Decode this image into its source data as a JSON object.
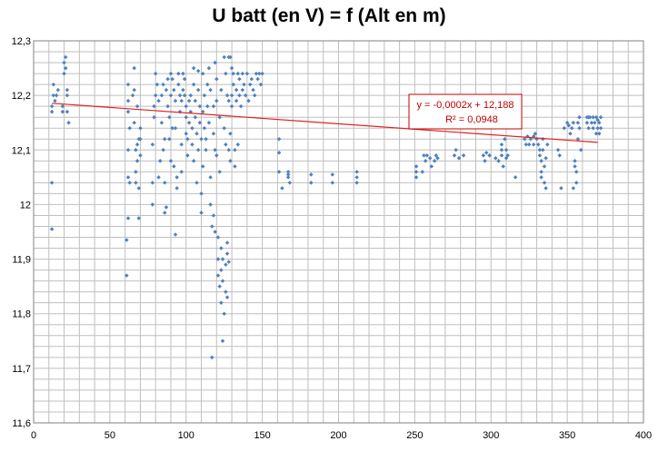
{
  "chart_data": {
    "type": "scatter",
    "title": "U batt (en V) = f (Alt en m)",
    "xlabel": "",
    "ylabel": "",
    "xlim": [
      0,
      400
    ],
    "ylim": [
      11.6,
      12.3
    ],
    "x_ticks": [
      "0",
      "50",
      "100",
      "150",
      "200",
      "250",
      "300",
      "350",
      "400"
    ],
    "y_ticks": [
      "11,6",
      "11,7",
      "11,8",
      "11,9",
      "12",
      "12,1",
      "12,2",
      "12,3"
    ],
    "grid": true,
    "marker_color": "#4f81bd",
    "trendline": {
      "type": "linear",
      "slope": -0.0002,
      "intercept": 12.188,
      "x_range": [
        12,
        370
      ],
      "color": "#e02020",
      "equation_label": "y = -0,0002x + 12,188",
      "r2_label": "R² = 0,0948"
    },
    "points": [
      [
        12,
        12.04
      ],
      [
        12,
        11.955
      ],
      [
        12,
        12.18
      ],
      [
        13,
        12.2
      ],
      [
        13,
        12.22
      ],
      [
        14,
        12.19
      ],
      [
        15,
        12.2
      ],
      [
        12,
        12.17
      ],
      [
        16,
        12.21
      ],
      [
        19,
        12.18
      ],
      [
        19,
        12.17
      ],
      [
        20,
        12.24
      ],
      [
        20,
        12.26
      ],
      [
        21,
        12.27
      ],
      [
        21,
        12.25
      ],
      [
        22,
        12.21
      ],
      [
        22,
        12.2
      ],
      [
        22,
        12.17
      ],
      [
        23,
        12.15
      ],
      [
        61,
        11.87
      ],
      [
        61,
        11.935
      ],
      [
        62,
        11.975
      ],
      [
        62,
        12.05
      ],
      [
        62,
        12.1
      ],
      [
        62,
        12.19
      ],
      [
        62,
        12.22
      ],
      [
        62,
        12.17
      ],
      [
        63,
        12.04
      ],
      [
        63,
        12.14
      ],
      [
        65,
        12.2
      ],
      [
        66,
        12.25
      ],
      [
        66,
        12.21
      ],
      [
        66,
        12.15
      ],
      [
        67,
        12.1
      ],
      [
        67,
        12.06
      ],
      [
        67,
        12.04
      ],
      [
        68,
        12.11
      ],
      [
        68,
        12.08
      ],
      [
        68,
        12.18
      ],
      [
        69,
        12.03
      ],
      [
        69,
        11.975
      ],
      [
        69,
        12.12
      ],
      [
        70,
        12.12
      ],
      [
        70,
        12.14
      ],
      [
        70,
        12.09
      ],
      [
        78,
        12.0
      ],
      [
        78,
        12.04
      ],
      [
        78,
        12.11
      ],
      [
        79,
        12.16
      ],
      [
        79,
        12.18
      ],
      [
        80,
        12.24
      ],
      [
        80,
        12.2
      ],
      [
        81,
        12.22
      ],
      [
        82,
        12.19
      ],
      [
        82,
        12.05
      ],
      [
        83,
        12.08
      ],
      [
        84,
        12.2
      ],
      [
        84,
        12.15
      ],
      [
        85,
        12.1
      ],
      [
        85,
        12.22
      ],
      [
        86,
        12.04
      ],
      [
        86,
        12.12
      ],
      [
        87,
        12.21
      ],
      [
        86,
        11.985
      ],
      [
        87,
        11.995
      ],
      [
        88,
        12.23
      ],
      [
        88,
        12.18
      ],
      [
        89,
        12.16
      ],
      [
        89,
        12.12
      ],
      [
        90,
        12.24
      ],
      [
        90,
        12.2
      ],
      [
        90,
        12.08
      ],
      [
        91,
        12.23
      ],
      [
        91,
        12.14
      ],
      [
        92,
        12.07
      ],
      [
        92,
        12.21
      ],
      [
        93,
        12.19
      ],
      [
        93,
        12.14
      ],
      [
        94,
        12.05
      ],
      [
        93,
        11.945
      ],
      [
        94,
        12.03
      ],
      [
        95,
        12.24
      ],
      [
        95,
        12.22
      ],
      [
        96,
        12.2
      ],
      [
        96,
        12.17
      ],
      [
        97,
        12.19
      ],
      [
        97,
        12.11
      ],
      [
        97,
        12.06
      ],
      [
        98,
        12.24
      ],
      [
        98,
        12.21
      ],
      [
        99,
        12.23
      ],
      [
        99,
        12.2
      ],
      [
        100,
        12.18
      ],
      [
        100,
        12.16
      ],
      [
        100,
        12.13
      ],
      [
        101,
        12.12
      ],
      [
        101,
        12.09
      ],
      [
        102,
        12.19
      ],
      [
        102,
        12.15
      ],
      [
        103,
        12.2
      ],
      [
        103,
        12.17
      ],
      [
        104,
        12.14
      ],
      [
        104,
        12.11
      ],
      [
        105,
        12.25
      ],
      [
        105,
        12.08
      ],
      [
        105,
        12.22
      ],
      [
        106,
        12.19
      ],
      [
        106,
        12.16
      ],
      [
        107,
        12.13
      ],
      [
        107,
        12.04
      ],
      [
        108,
        12.1
      ],
      [
        108,
        12.21
      ],
      [
        108,
        12.245
      ],
      [
        109,
        12.18
      ],
      [
        109,
        12.15
      ],
      [
        110,
        12.12
      ],
      [
        110,
        12.02
      ],
      [
        110,
        11.985
      ],
      [
        111,
        12.07
      ],
      [
        111,
        12.17
      ],
      [
        111,
        12.24
      ],
      [
        112,
        12.2
      ],
      [
        112,
        12.14
      ],
      [
        113,
        12.12
      ],
      [
        113,
        12.1
      ],
      [
        114,
        12.22
      ],
      [
        114,
        12.18
      ],
      [
        115,
        12.15
      ],
      [
        115,
        12.25
      ],
      [
        116,
        12.21
      ],
      [
        116,
        12.05
      ],
      [
        116,
        12.0
      ],
      [
        117,
        11.96
      ],
      [
        117,
        11.72
      ],
      [
        118,
        12.18
      ],
      [
        118,
        12.13
      ],
      [
        118,
        11.98
      ],
      [
        119,
        11.95
      ],
      [
        119,
        12.1
      ],
      [
        119,
        12.26
      ],
      [
        120,
        12.23
      ],
      [
        120,
        12.19
      ],
      [
        120,
        12.09
      ],
      [
        121,
        11.94
      ],
      [
        121,
        11.9
      ],
      [
        121,
        11.87
      ],
      [
        122,
        11.85
      ],
      [
        122,
        12.16
      ],
      [
        122,
        12.06
      ],
      [
        123,
        11.92
      ],
      [
        123,
        11.88
      ],
      [
        123,
        11.82
      ],
      [
        123,
        12.21
      ],
      [
        124,
        11.86
      ],
      [
        124,
        11.9
      ],
      [
        124,
        11.75
      ],
      [
        125,
        11.8
      ],
      [
        125,
        12.14
      ],
      [
        125,
        12.27
      ],
      [
        126,
        11.89
      ],
      [
        126,
        11.84
      ],
      [
        126,
        12.11
      ],
      [
        126,
        12.24
      ],
      [
        127,
        11.91
      ],
      [
        127,
        11.93
      ],
      [
        127,
        11.83
      ],
      [
        127,
        12.2
      ],
      [
        128,
        11.895
      ],
      [
        128,
        12.19
      ],
      [
        128,
        12.1
      ],
      [
        128,
        12.27
      ],
      [
        129,
        12.27
      ],
      [
        129,
        12.13
      ],
      [
        129,
        12.08
      ],
      [
        130,
        12.18
      ],
      [
        130,
        12.25
      ],
      [
        130,
        12.2
      ],
      [
        131,
        12.24
      ],
      [
        131,
        12.22
      ],
      [
        132,
        12.1
      ],
      [
        132,
        12.07
      ],
      [
        133,
        12.21
      ],
      [
        133,
        12.19
      ],
      [
        134,
        12.24
      ],
      [
        134,
        12.11
      ],
      [
        135,
        12.23
      ],
      [
        135,
        12.2
      ],
      [
        136,
        12.18
      ],
      [
        137,
        12.24
      ],
      [
        137,
        12.21
      ],
      [
        138,
        12.22
      ],
      [
        139,
        12.2
      ],
      [
        140,
        12.24
      ],
      [
        141,
        12.19
      ],
      [
        142,
        12.22
      ],
      [
        143,
        12.23
      ],
      [
        144,
        12.21
      ],
      [
        145,
        12.2
      ],
      [
        146,
        12.24
      ],
      [
        147,
        12.23
      ],
      [
        148,
        12.24
      ],
      [
        149,
        12.22
      ],
      [
        150,
        12.24
      ],
      [
        161,
        12.12
      ],
      [
        161,
        12.095
      ],
      [
        161,
        12.06
      ],
      [
        163,
        12.03
      ],
      [
        167,
        12.06
      ],
      [
        167,
        12.05
      ],
      [
        168,
        12.04
      ],
      [
        167,
        12.055
      ],
      [
        182,
        12.04
      ],
      [
        182,
        12.055
      ],
      [
        196,
        12.04
      ],
      [
        196,
        12.055
      ],
      [
        212,
        12.05
      ],
      [
        212,
        12.06
      ],
      [
        212,
        12.04
      ],
      [
        251,
        12.07
      ],
      [
        251,
        12.06
      ],
      [
        251,
        12.05
      ],
      [
        255,
        12.06
      ],
      [
        256,
        12.09
      ],
      [
        257,
        12.08
      ],
      [
        258,
        12.09
      ],
      [
        260,
        12.085
      ],
      [
        261,
        12.07
      ],
      [
        263,
        12.08
      ],
      [
        264,
        12.09
      ],
      [
        265,
        12.085
      ],
      [
        276,
        12.09
      ],
      [
        277,
        12.1
      ],
      [
        279,
        12.085
      ],
      [
        282,
        12.09
      ],
      [
        295,
        12.09
      ],
      [
        296,
        12.08
      ],
      [
        297,
        12.095
      ],
      [
        299,
        12.09
      ],
      [
        303,
        12.085
      ],
      [
        305,
        12.08
      ],
      [
        307,
        12.09
      ],
      [
        307,
        12.1
      ],
      [
        307,
        12.11
      ],
      [
        308,
        12.07
      ],
      [
        309,
        12.12
      ],
      [
        310,
        12.085
      ],
      [
        311,
        12.09
      ],
      [
        310,
        12.1
      ],
      [
        316,
        12.05
      ],
      [
        322,
        12.12
      ],
      [
        323,
        12.11
      ],
      [
        324,
        12.125
      ],
      [
        325,
        12.11
      ],
      [
        326,
        12.12
      ],
      [
        328,
        12.11
      ],
      [
        328,
        12.125
      ],
      [
        329,
        12.13
      ],
      [
        330,
        12.12
      ],
      [
        331,
        12.11
      ],
      [
        332,
        12.1
      ],
      [
        332,
        12.09
      ],
      [
        333,
        12.08
      ],
      [
        333,
        12.06
      ],
      [
        333,
        12.05
      ],
      [
        334,
        12.12
      ],
      [
        334,
        12.1
      ],
      [
        335,
        12.07
      ],
      [
        335,
        12.04
      ],
      [
        336,
        12.03
      ],
      [
        336,
        12.085
      ],
      [
        337,
        12.11
      ],
      [
        344,
        12.1
      ],
      [
        345,
        12.09
      ],
      [
        346,
        12.03
      ],
      [
        348,
        12.14
      ],
      [
        350,
        12.15
      ],
      [
        351,
        12.145
      ],
      [
        352,
        12.13
      ],
      [
        353,
        12.14
      ],
      [
        354,
        12.15
      ],
      [
        354,
        12.03
      ],
      [
        355,
        12.08
      ],
      [
        355,
        12.07
      ],
      [
        356,
        12.04
      ],
      [
        356,
        12.06
      ],
      [
        357,
        12.12
      ],
      [
        357,
        12.15
      ],
      [
        358,
        12.14
      ],
      [
        358,
        12.16
      ],
      [
        359,
        12.1
      ],
      [
        363,
        12.16
      ],
      [
        363,
        12.15
      ],
      [
        364,
        12.14
      ],
      [
        364,
        12.16
      ],
      [
        365,
        12.16
      ],
      [
        366,
        12.15
      ],
      [
        367,
        12.14
      ],
      [
        367,
        12.16
      ],
      [
        368,
        12.15
      ],
      [
        369,
        12.13
      ],
      [
        369,
        12.16
      ],
      [
        370,
        12.14
      ],
      [
        370,
        12.155
      ],
      [
        371,
        12.15
      ],
      [
        371,
        12.13
      ],
      [
        372,
        12.16
      ],
      [
        372,
        12.14
      ]
    ]
  }
}
